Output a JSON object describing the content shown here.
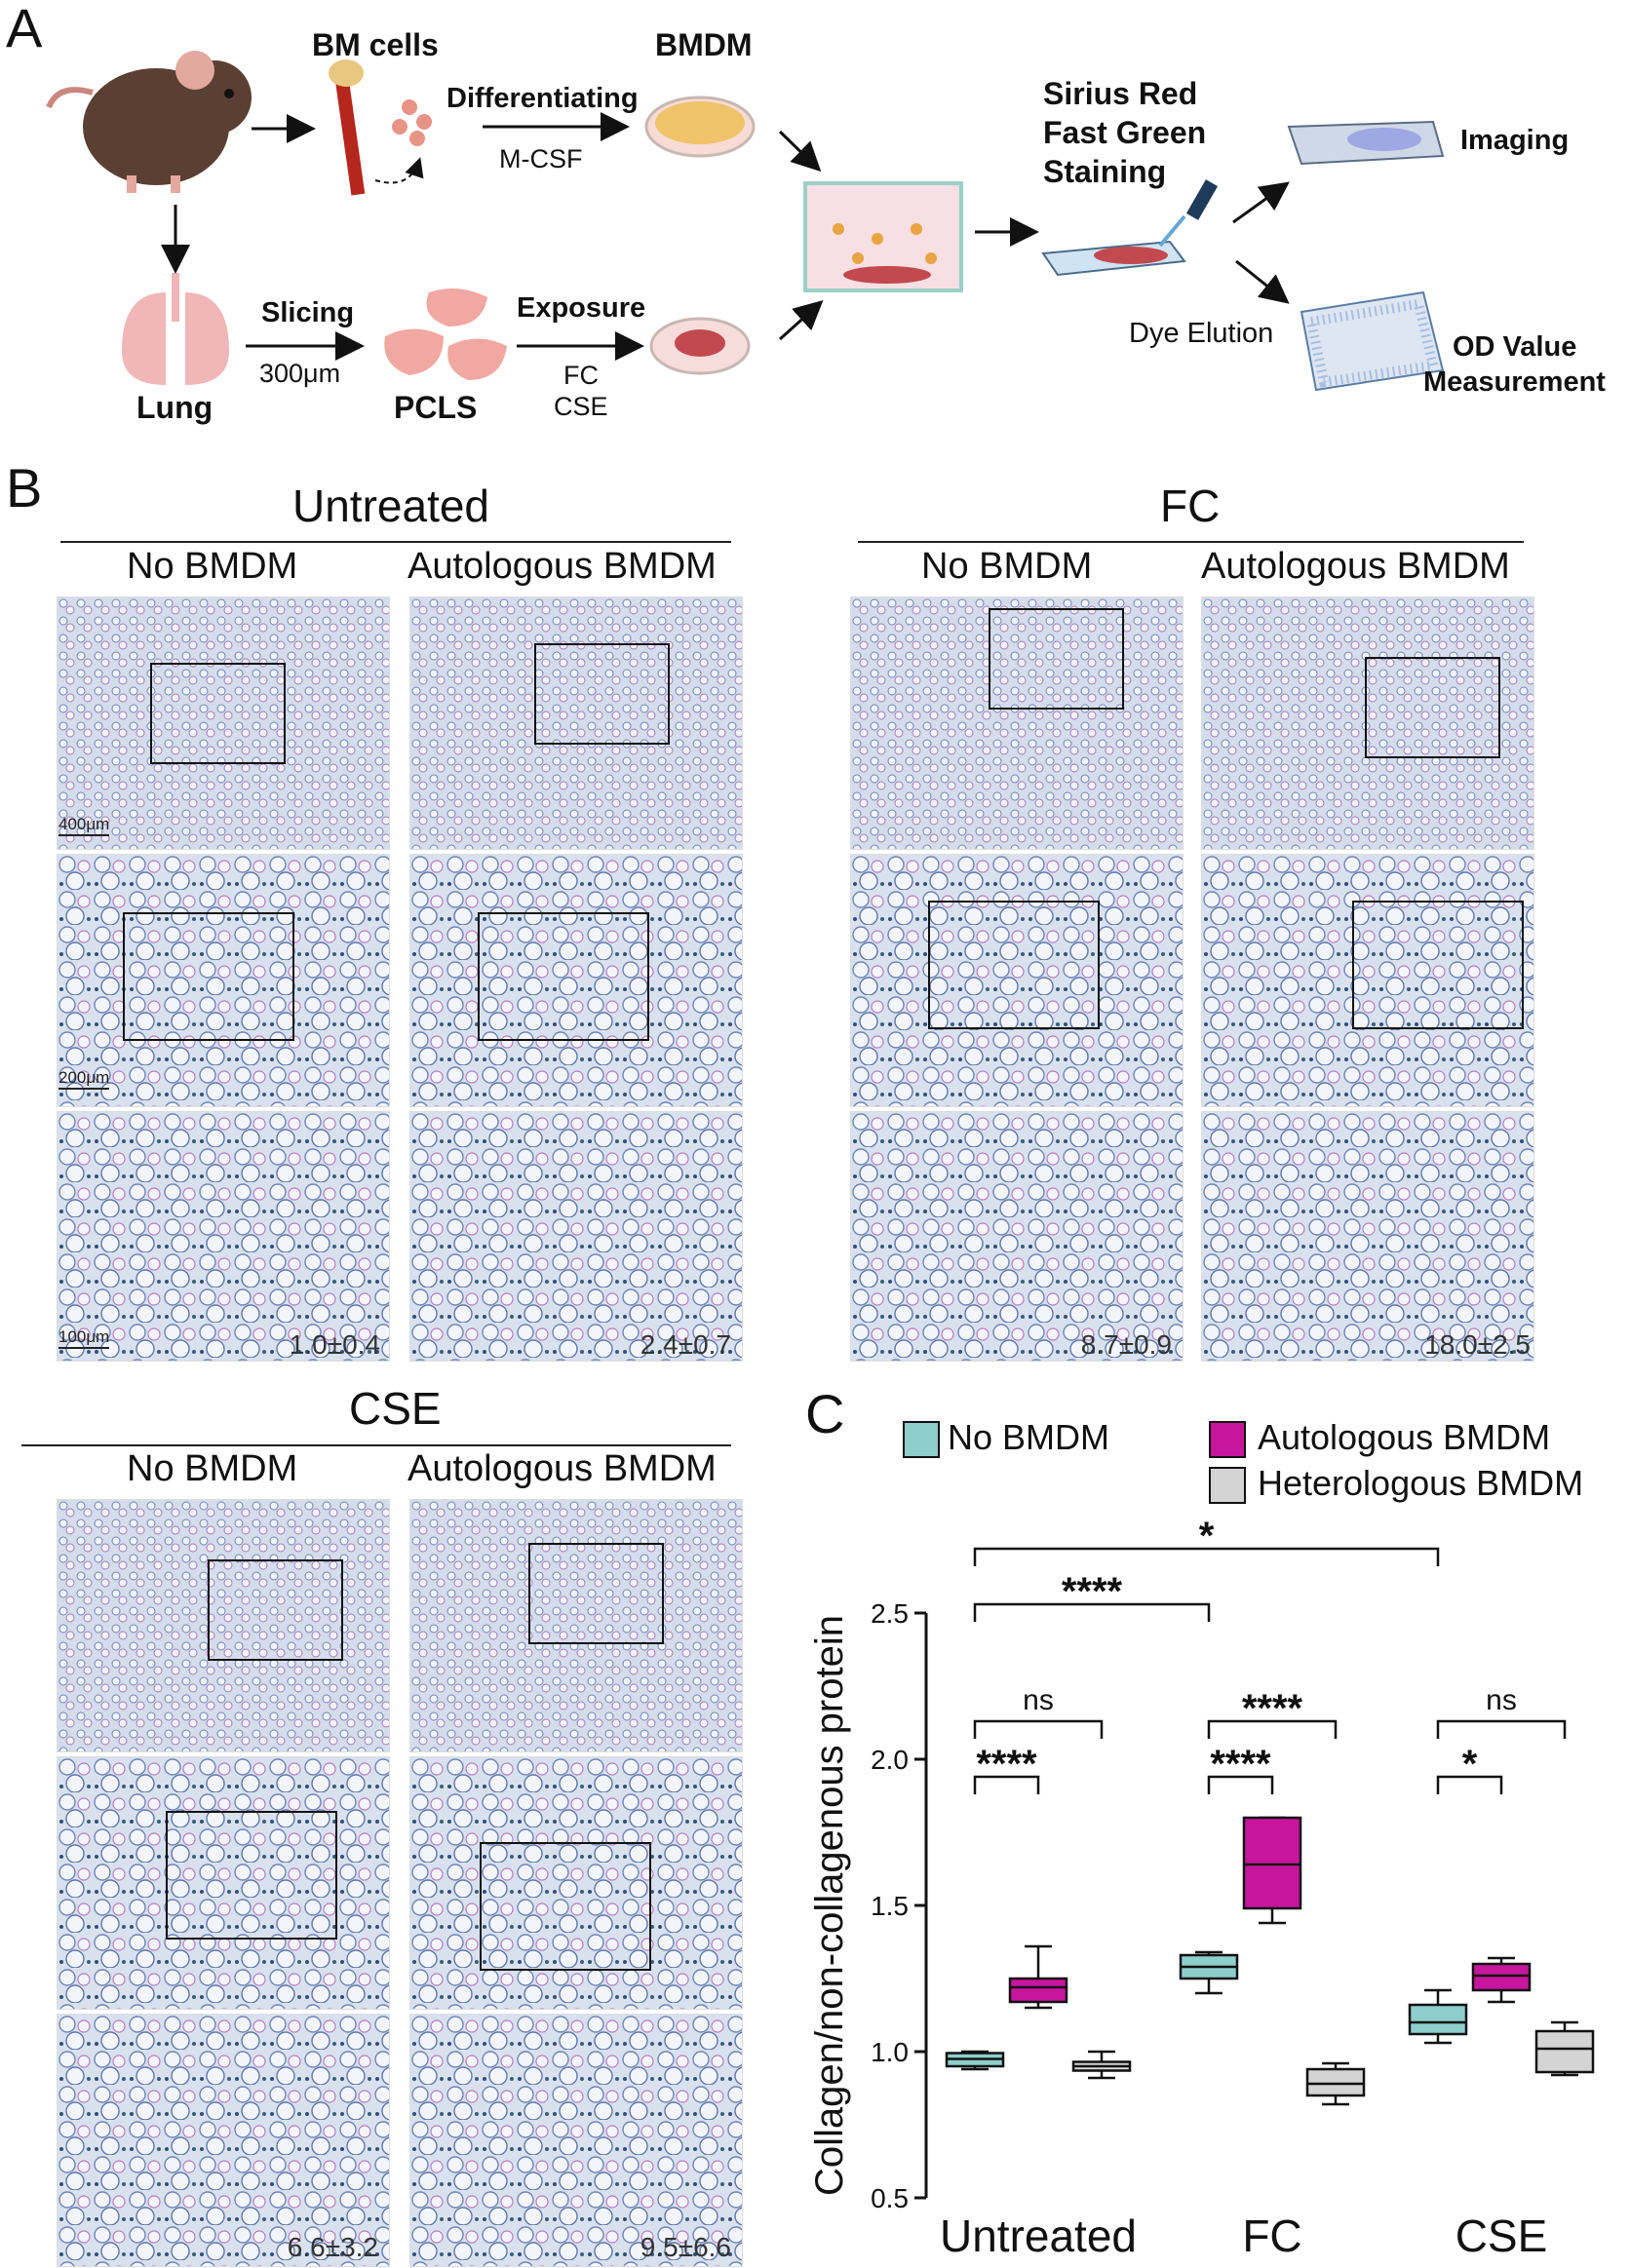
{
  "panelA": {
    "letter": "A",
    "bm_cells": "BM cells",
    "bmdm": "BMDM",
    "differentiating": "Differentiating",
    "mcsf": "M-CSF",
    "lung": "Lung",
    "slicing": "Slicing",
    "thickness": "300μm",
    "pcls": "PCLS",
    "exposure": "Exposure",
    "fc": "FC",
    "cse": "CSE",
    "staining_line1": "Sirius Red",
    "staining_line2": "Fast Green",
    "staining_line3": "Staining",
    "imaging": "Imaging",
    "dye_elution": "Dye Elution",
    "od_line1": "OD Value",
    "od_line2": "Measurement"
  },
  "panelB": {
    "letter": "B",
    "groups": [
      {
        "title": "Untreated",
        "cols": [
          "No BMDM",
          "Autologous BMDM"
        ],
        "values": [
          "1.0±0.4",
          "2.4±0.7"
        ]
      },
      {
        "title": "FC",
        "cols": [
          "No BMDM",
          "Autologous BMDM"
        ],
        "values": [
          "8.7±0.9",
          "18.0±2.5"
        ]
      },
      {
        "title": "CSE",
        "cols": [
          "No BMDM",
          "Autologous BMDM"
        ],
        "values": [
          "6.6±3.2",
          "9.5±6.6"
        ]
      }
    ],
    "scalebars": [
      "400μm",
      "200μm",
      "100μm"
    ]
  },
  "panelC": {
    "letter": "C",
    "legend": [
      "No BMDM",
      "Autologous BMDM",
      "Heterologous BMDM"
    ],
    "colors": {
      "no": "#8ecfcc",
      "auto": "#c8159e",
      "hetero": "#d4d4d4"
    },
    "significance": {
      "uc_cse": "*",
      "uc_fc": "****",
      "u_ns": "ns",
      "fc_ah": "****",
      "cse_ns": "ns",
      "u_na": "****",
      "fc_na": "****",
      "cse_na": "*"
    }
  },
  "chart_data": {
    "type": "box",
    "title": "",
    "ylabel": "Collagen/non-collagenous protein",
    "xlabel": "",
    "ylim": [
      0.5,
      2.5
    ],
    "yticks": [
      "0.5",
      "1.0",
      "1.5",
      "2.0",
      "2.5"
    ],
    "categories": [
      "Untreated",
      "FC",
      "CSE"
    ],
    "series": [
      {
        "name": "No BMDM",
        "boxes": [
          {
            "min": 0.94,
            "q1": 0.95,
            "median": 0.975,
            "q3": 0.995,
            "max": 1.0
          },
          {
            "min": 1.2,
            "q1": 1.25,
            "median": 1.29,
            "q3": 1.33,
            "max": 1.34
          },
          {
            "min": 1.03,
            "q1": 1.06,
            "median": 1.1,
            "q3": 1.16,
            "max": 1.21
          }
        ]
      },
      {
        "name": "Autologous BMDM",
        "boxes": [
          {
            "min": 1.15,
            "q1": 1.17,
            "median": 1.22,
            "q3": 1.25,
            "max": 1.36
          },
          {
            "min": 1.44,
            "q1": 1.49,
            "median": 1.64,
            "q3": 1.8,
            "max": 1.8
          },
          {
            "min": 1.17,
            "q1": 1.21,
            "median": 1.26,
            "q3": 1.3,
            "max": 1.32
          }
        ]
      },
      {
        "name": "Heterologous BMDM",
        "boxes": [
          {
            "min": 0.91,
            "q1": 0.935,
            "median": 0.95,
            "q3": 0.965,
            "max": 1.0
          },
          {
            "min": 0.82,
            "q1": 0.85,
            "median": 0.89,
            "q3": 0.94,
            "max": 0.96
          },
          {
            "min": 0.92,
            "q1": 0.93,
            "median": 1.01,
            "q3": 1.07,
            "max": 1.1
          }
        ]
      }
    ]
  }
}
